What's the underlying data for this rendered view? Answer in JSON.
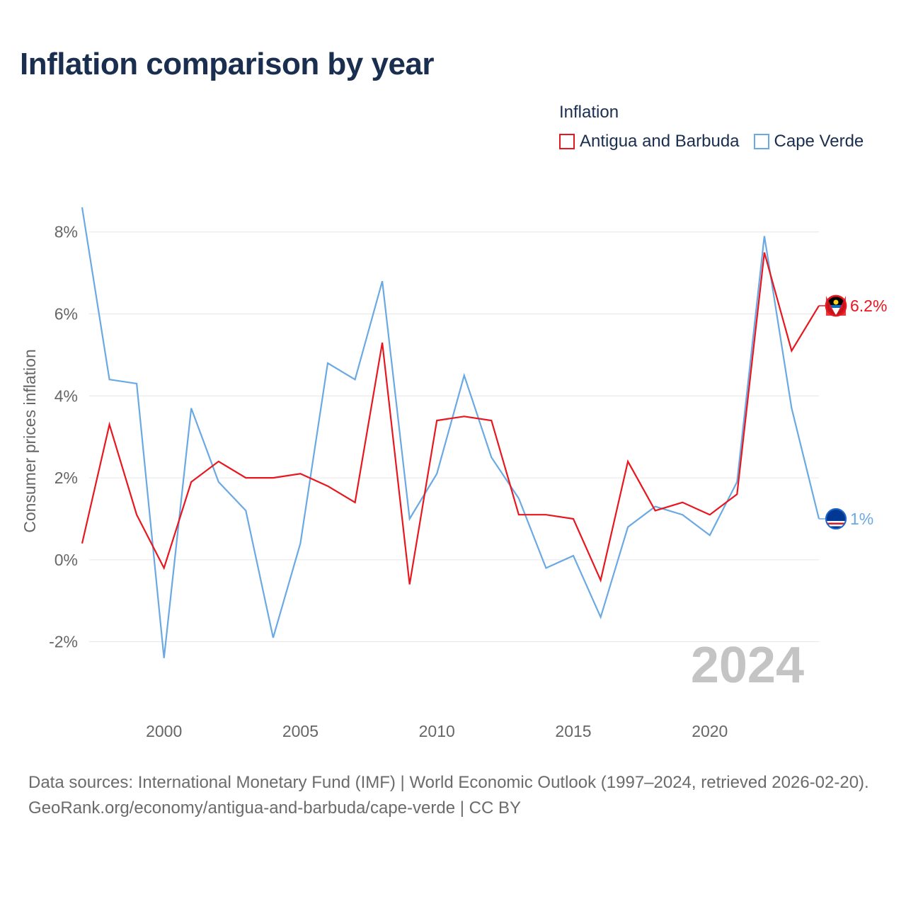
{
  "title": "Inflation comparison by year",
  "legend": {
    "title": "Inflation",
    "items": [
      {
        "label": "Antigua and Barbuda",
        "color": "#e8171f"
      },
      {
        "label": "Cape Verde",
        "color": "#6aa9e4"
      }
    ]
  },
  "footer": {
    "sources": "Data sources: International Monetary Fund (IMF) | World Economic Outlook (1997–2024, retrieved 2026-02-20).",
    "credit": "GeoRank.org/economy/antigua-and-barbuda/cape-verde | CC BY"
  },
  "chart_data": {
    "type": "line",
    "title": "Inflation comparison by year",
    "ylabel": "Consumer prices inflation",
    "xlabel": "",
    "x": [
      1997,
      1998,
      1999,
      2000,
      2001,
      2002,
      2003,
      2004,
      2005,
      2006,
      2007,
      2008,
      2009,
      2010,
      2011,
      2012,
      2013,
      2014,
      2015,
      2016,
      2017,
      2018,
      2019,
      2020,
      2021,
      2022,
      2023,
      2024
    ],
    "xlim": [
      1997,
      2024
    ],
    "ylim": [
      -2.8,
      8.6
    ],
    "x_ticks": [
      2000,
      2005,
      2010,
      2015,
      2020
    ],
    "y_ticks": [
      -2,
      0,
      2,
      4,
      6,
      8
    ],
    "y_tick_labels": [
      "-2%",
      "0%",
      "2%",
      "4%",
      "6%",
      "8%"
    ],
    "year_label": "2024",
    "series": [
      {
        "name": "Antigua and Barbuda",
        "color": "#e8171f",
        "end_label": "6.2%",
        "values": [
          0.4,
          3.3,
          1.1,
          -0.2,
          1.9,
          2.4,
          2.0,
          2.0,
          2.1,
          1.8,
          1.4,
          5.3,
          -0.6,
          3.4,
          3.5,
          3.4,
          1.1,
          1.1,
          1.0,
          -0.5,
          2.4,
          1.2,
          1.4,
          1.1,
          1.6,
          7.5,
          5.1,
          6.2
        ]
      },
      {
        "name": "Cape Verde",
        "color": "#6aa9e4",
        "end_label": "1%",
        "values": [
          8.6,
          4.4,
          4.3,
          -2.4,
          3.7,
          1.9,
          1.2,
          -1.9,
          0.4,
          4.8,
          4.4,
          6.8,
          1.0,
          2.1,
          4.5,
          2.5,
          1.5,
          -0.2,
          0.1,
          -1.4,
          0.8,
          1.3,
          1.1,
          0.6,
          1.9,
          7.9,
          3.7,
          1.0
        ]
      }
    ]
  }
}
